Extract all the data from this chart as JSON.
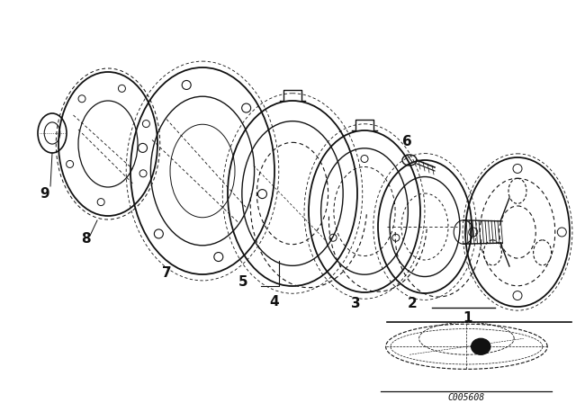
{
  "background_color": "#ffffff",
  "line_color": "#111111",
  "label_color": "#111111",
  "fig_width": 6.4,
  "fig_height": 4.48,
  "dpi": 100,
  "diagram_code_text": "C005608"
}
